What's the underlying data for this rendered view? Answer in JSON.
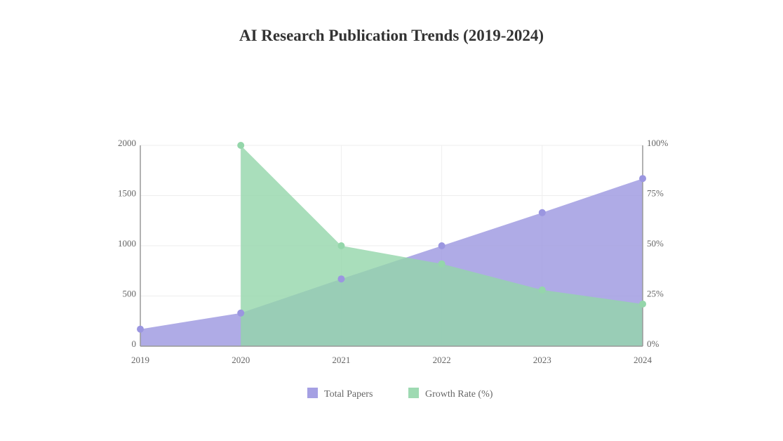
{
  "chart_data": {
    "type": "area",
    "title": "AI Research Publication Trends (2019-2024)",
    "categories": [
      "2019",
      "2020",
      "2021",
      "2022",
      "2023",
      "2024"
    ],
    "series": [
      {
        "name": "Total Papers",
        "axis": "left",
        "color": "#9b96e0",
        "values": [
          170,
          330,
          670,
          1000,
          1330,
          1670
        ]
      },
      {
        "name": "Growth Rate (%)",
        "axis": "right",
        "color": "#94d6aa",
        "values": [
          null,
          100,
          50,
          41,
          28,
          21
        ]
      }
    ],
    "y_left": {
      "min": 0,
      "max": 2000,
      "ticks": [
        "0",
        "500",
        "1000",
        "1500",
        "2000"
      ]
    },
    "y_right": {
      "min": 0,
      "max": 100,
      "ticks": [
        "0%",
        "25%",
        "50%",
        "75%",
        "100%"
      ]
    },
    "grid": true,
    "legend_position": "bottom"
  }
}
